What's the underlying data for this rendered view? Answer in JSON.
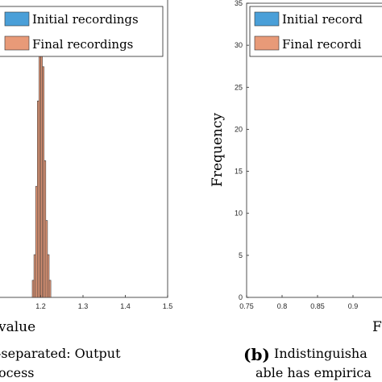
{
  "chart_data": [
    {
      "type": "bar",
      "subplot": "a",
      "xlabel": "value",
      "ylabel": "",
      "xlim": [
        1.1,
        1.5
      ],
      "ylim": [
        0,
        35
      ],
      "x_ticks": [
        "1.2",
        "1.3",
        "1.4",
        "1.5"
      ],
      "y_ticks": [],
      "grid": false,
      "legend_position": "top-right",
      "bin_width": 0.004,
      "series": [
        {
          "name": "Initial recordings",
          "color": "#4a9fd8",
          "x": [],
          "values": []
        },
        {
          "name": "Final recordings",
          "color": "#e89a78",
          "x": [
            1.182,
            1.186,
            1.19,
            1.194,
            1.198,
            1.202,
            1.206,
            1.21,
            1.214,
            1.218,
            1.222
          ],
          "values": [
            2,
            5,
            13,
            23,
            33,
            33,
            27,
            16,
            9,
            5,
            2
          ]
        }
      ],
      "caption_text_line1": "-separated:   Output",
      "caption_text_line2": "ocess"
    },
    {
      "type": "bar",
      "subplot": "b",
      "xlabel": "F",
      "ylabel": "Frequency",
      "xlim": [
        0.75,
        0.95
      ],
      "ylim": [
        0,
        35
      ],
      "x_ticks": [
        "0.75",
        "0.8",
        "0.85",
        "0.9"
      ],
      "y_ticks": [
        "0",
        "5",
        "10",
        "15",
        "20",
        "25",
        "30",
        "35"
      ],
      "grid": false,
      "legend_position": "top-right",
      "series": [
        {
          "name": "Initial record",
          "color": "#4a9fd8",
          "x": [],
          "values": []
        },
        {
          "name": "Final recordi",
          "color": "#e89a78",
          "x": [],
          "values": []
        }
      ],
      "caption_label": "(b)",
      "caption_text_line1": "Indistinguisha",
      "caption_text_line2": "able has empirica"
    }
  ]
}
